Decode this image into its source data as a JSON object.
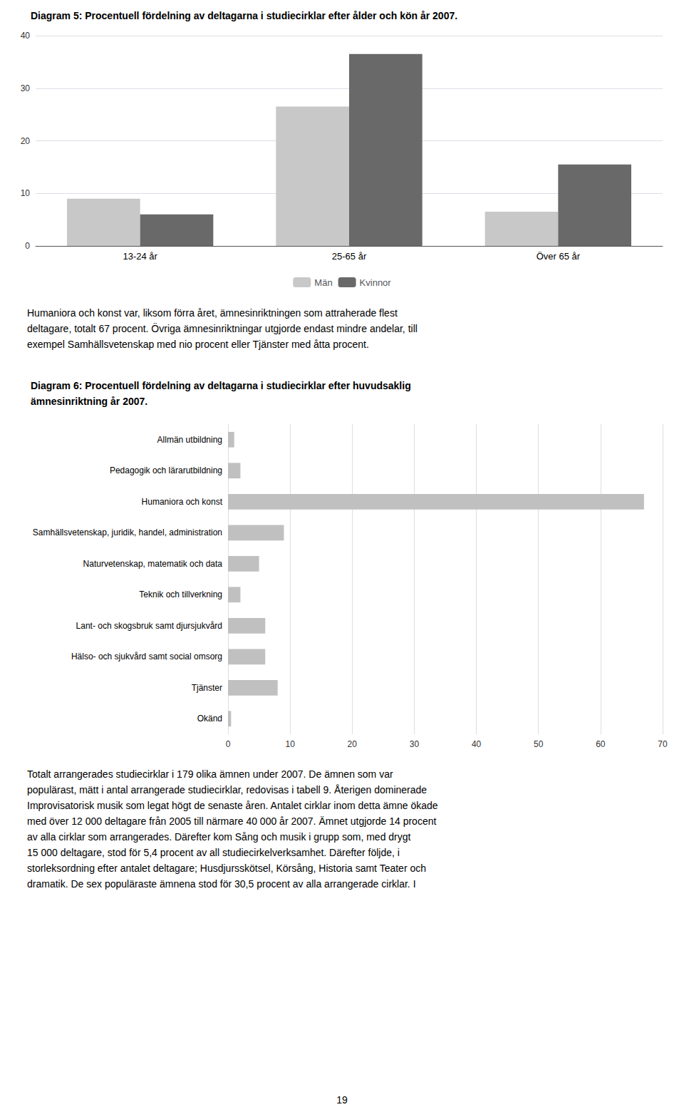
{
  "chart_data": [
    {
      "type": "bar",
      "title": "Diagram 5: Procentuell fördelning av deltagarna i studiecirklar efter ålder och kön år 2007.",
      "categories": [
        "13-24 år",
        "25-65 år",
        "Över 65 år"
      ],
      "series": [
        {
          "name": "Män",
          "color": "#c8c8c8",
          "values": [
            9,
            26.5,
            6.5
          ]
        },
        {
          "name": "Kvinnor",
          "color": "#696969",
          "values": [
            6,
            36.5,
            15.5
          ]
        }
      ],
      "ylim": [
        0,
        40
      ],
      "yticks": [
        0,
        10,
        20,
        30,
        40
      ],
      "grid": true,
      "legend": "bottom",
      "annotations": [
        "Humaniora och konst var, liksom förra året, ämnesinriktningen som attraherade flest",
        "deltagare, totalt 67 procent. Övriga ämnesinriktningar utgjorde endast mindre andelar, till",
        "exempel Samhällsvetenskap med nio procent eller Tjänster med åtta procent."
      ]
    },
    {
      "type": "bar",
      "orientation": "horizontal",
      "title": "Diagram 6: Procentuell fördelning av deltagarna i studiecirklar efter huvudsaklig\nämnesinriktning år 2007.",
      "categories": [
        "Allmän utbildning",
        "Pedagogik och lärarutbildning",
        "Humaniora och konst",
        "Samhällsvetenskap, juridik, handel, administration",
        "Naturvetenskap, matematik och data",
        "Teknik och tillverkning",
        "Lant- och skogsbruk samt djursjukvård",
        "Hälso- och sjukvård samt social omsorg",
        "Tjänster",
        "Okänd"
      ],
      "values": [
        1,
        2,
        67,
        9,
        5,
        2,
        6,
        6,
        8,
        0.5
      ],
      "color": "#c0c0c0",
      "xlim": [
        0,
        70
      ],
      "xticks": [
        0,
        10,
        20,
        30,
        40,
        50,
        60,
        70
      ],
      "grid": true,
      "annotations": [
        "Totalt arrangerades studiecirklar i 179 olika ämnen under 2007. De ämnen som var",
        "populärast, mätt i antal arrangerade studiecirklar, redovisas i tabell 9. Återigen dominerade",
        "Improvisatorisk musik som legat högt de senaste åren. Antalet cirklar inom detta ämne ökade",
        "med över 12 000 deltagare från 2005 till närmare 40 000 år 2007. Ämnet utgjorde 14 procent",
        "av alla cirklar som arrangerades. Därefter kom Sång och musik i grupp som, med drygt",
        "15 000 deltagare, stod för 5,4 procent av all studiecirkelverksamhet. Därefter följde, i",
        "storleksordning efter antalet deltagare; Husdjursskötsel, Körsång, Historia samt Teater och",
        "dramatik. De sex populäraste ämnena stod för 30,5 procent av alla arrangerade cirklar. I",
        "19"
      ]
    }
  ]
}
